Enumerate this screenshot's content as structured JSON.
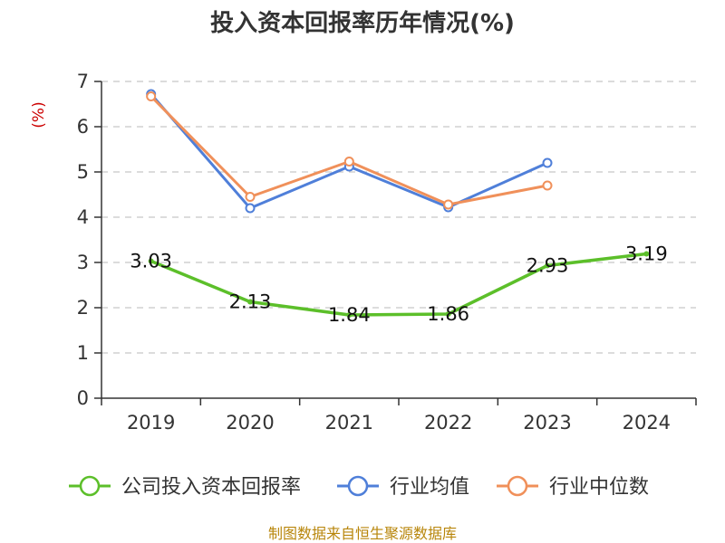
{
  "chart_data": {
    "type": "line",
    "title": "投入资本回报率历年情况(%)",
    "ylabel": "(%)",
    "categories": [
      "2019",
      "2020",
      "2021",
      "2022",
      "2023",
      "2024"
    ],
    "ylim": [
      0,
      7
    ],
    "yticks": [
      "0",
      "1",
      "2",
      "3",
      "4",
      "5",
      "6",
      "7"
    ],
    "grid": true,
    "legend_position": "bottom",
    "series": [
      {
        "name": "公司投入资本回报率",
        "color": "#5cbf2a",
        "values": [
          3.03,
          2.13,
          1.84,
          1.86,
          2.93,
          3.19
        ],
        "labels": [
          "3.03",
          "2.13",
          "1.84",
          "1.86",
          "2.93",
          "3.19"
        ]
      },
      {
        "name": "行业均值",
        "color": "#4f7fd9",
        "values": [
          6.72,
          4.2,
          5.12,
          4.22,
          5.2,
          null
        ]
      },
      {
        "name": "行业中位数",
        "color": "#f0905a",
        "values": [
          6.67,
          4.45,
          5.23,
          4.28,
          4.7,
          null
        ]
      }
    ]
  },
  "source": "制图数据来自恒生聚源数据库"
}
